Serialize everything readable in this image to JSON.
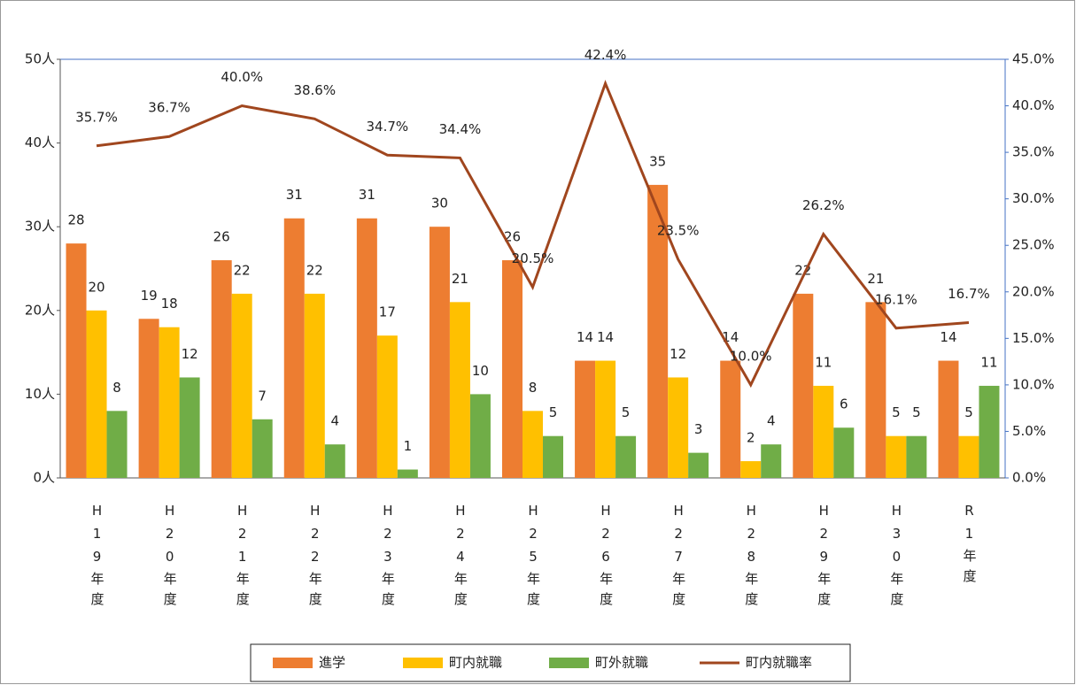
{
  "chart_data": {
    "type": "bar_line",
    "categories": [
      "H19年度",
      "H20年度",
      "H21年度",
      "H22年度",
      "H23年度",
      "H24年度",
      "H25年度",
      "H26年度",
      "H27年度",
      "H28年度",
      "H29年度",
      "H30年度",
      "R1年度"
    ],
    "series": [
      {
        "name": "進学",
        "type": "bar",
        "color": "#ed7d31",
        "values": [
          28,
          19,
          26,
          31,
          31,
          30,
          26,
          14,
          35,
          14,
          22,
          21,
          14
        ]
      },
      {
        "name": "町内就職",
        "type": "bar",
        "color": "#ffc000",
        "values": [
          20,
          18,
          22,
          22,
          17,
          21,
          8,
          14,
          12,
          2,
          11,
          5,
          5
        ]
      },
      {
        "name": "町外就職",
        "type": "bar",
        "color": "#70ad47",
        "values": [
          8,
          12,
          7,
          4,
          1,
          10,
          5,
          5,
          3,
          4,
          6,
          5,
          11
        ]
      },
      {
        "name": "町内就職率",
        "type": "line",
        "axis": "y2",
        "color": "#a0461e",
        "values": [
          35.7,
          36.7,
          40.0,
          38.6,
          34.7,
          34.4,
          20.5,
          42.4,
          23.5,
          10.0,
          26.2,
          16.1,
          16.7
        ],
        "value_labels": [
          "35.7%",
          "36.7%",
          "40.0%",
          "38.6%",
          "34.7%",
          "34.4%",
          "20.5%",
          "42.4%",
          "23.5%",
          "10.0%",
          "26.2%",
          "16.1%",
          "16.7%"
        ]
      }
    ],
    "ylim": [
      0,
      50
    ],
    "yticks": [
      {
        "value": 0,
        "label": "0人"
      },
      {
        "value": 10,
        "label": "10人"
      },
      {
        "value": 20,
        "label": "20人"
      },
      {
        "value": 30,
        "label": "30人"
      },
      {
        "value": 40,
        "label": "40人"
      },
      {
        "value": 50,
        "label": "50人"
      }
    ],
    "y2lim": [
      0,
      45
    ],
    "y2ticks": [
      {
        "value": 0,
        "label": "0.0%"
      },
      {
        "value": 5,
        "label": "5.0%"
      },
      {
        "value": 10,
        "label": "10.0%"
      },
      {
        "value": 15,
        "label": "15.0%"
      },
      {
        "value": 20,
        "label": "20.0%"
      },
      {
        "value": 25,
        "label": "25.0%"
      },
      {
        "value": 30,
        "label": "30.0%"
      },
      {
        "value": 35,
        "label": "35.0%"
      },
      {
        "value": 40,
        "label": "40.0%"
      },
      {
        "value": 45,
        "label": "45.0%"
      }
    ],
    "grid": false,
    "legend": "bottom"
  }
}
